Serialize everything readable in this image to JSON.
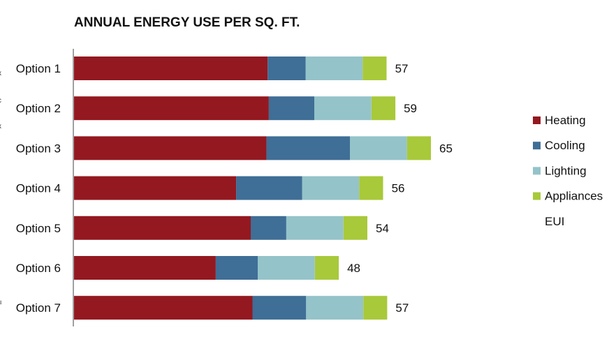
{
  "chart_data": {
    "type": "bar",
    "orientation": "horizontal",
    "stacked": true,
    "title": "ANNUAL ENERGY USE PER SQ. FT.",
    "categories": [
      "Option 1",
      "Option 2",
      "Option 3",
      "Option 4",
      "Option 5",
      "Option 6",
      "Option 7"
    ],
    "series": [
      {
        "name": "Heating",
        "color": "#941820",
        "values": [
          33.2,
          33.4,
          33.0,
          27.8,
          30.3,
          24.3,
          30.6
        ]
      },
      {
        "name": "Cooling",
        "color": "#3f6e96",
        "values": [
          6.5,
          7.8,
          14.3,
          11.3,
          6.1,
          7.2,
          9.2
        ]
      },
      {
        "name": "Lighting",
        "color": "#94c3c9",
        "values": [
          9.8,
          9.8,
          9.8,
          9.8,
          9.8,
          9.8,
          9.8
        ]
      },
      {
        "name": "Appliances",
        "color": "#a8c93a",
        "values": [
          4.1,
          4.1,
          4.1,
          4.1,
          4.1,
          4.1,
          4.1
        ]
      }
    ],
    "totals_series": {
      "name": "EUI",
      "values": [
        57,
        59,
        65,
        56,
        54,
        48,
        57
      ]
    },
    "xlim": [
      0,
      67
    ],
    "grid": false,
    "legend_position": "right"
  }
}
